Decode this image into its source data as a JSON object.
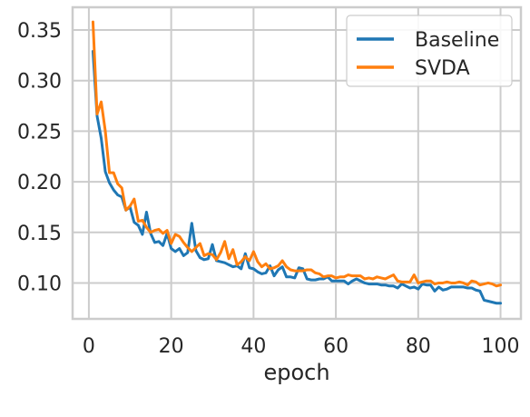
{
  "chart_data": {
    "type": "line",
    "title": "",
    "xlabel": "epoch",
    "ylabel": "",
    "xlim": [
      -3.95,
      104.95
    ],
    "ylim": [
      0.0645,
      0.3725
    ],
    "xticks": [
      0,
      20,
      40,
      60,
      80,
      100
    ],
    "yticks": [
      0.1,
      0.15,
      0.2,
      0.25,
      0.3,
      0.35
    ],
    "xtick_labels": [
      "0",
      "20",
      "40",
      "60",
      "80",
      "100"
    ],
    "ytick_labels": [
      "0.10",
      "0.15",
      "0.20",
      "0.25",
      "0.30",
      "0.35"
    ],
    "grid": true,
    "legend_position": "top-right",
    "x": [
      1,
      2,
      3,
      4,
      5,
      6,
      7,
      8,
      9,
      10,
      11,
      12,
      13,
      14,
      15,
      16,
      17,
      18,
      19,
      20,
      21,
      22,
      23,
      24,
      25,
      26,
      27,
      28,
      29,
      30,
      31,
      32,
      33,
      34,
      35,
      36,
      37,
      38,
      39,
      40,
      41,
      42,
      43,
      44,
      45,
      46,
      47,
      48,
      49,
      50,
      51,
      52,
      53,
      54,
      55,
      56,
      57,
      58,
      59,
      60,
      61,
      62,
      63,
      64,
      65,
      66,
      67,
      68,
      69,
      70,
      71,
      72,
      73,
      74,
      75,
      76,
      77,
      78,
      79,
      80,
      81,
      82,
      83,
      84,
      85,
      86,
      87,
      88,
      89,
      90,
      91,
      92,
      93,
      94,
      95,
      96,
      97,
      98,
      99,
      100
    ],
    "series": [
      {
        "name": "Baseline",
        "color": "#1f77b4",
        "values": [
          0.329,
          0.265,
          0.243,
          0.21,
          0.199,
          0.192,
          0.187,
          0.185,
          0.172,
          0.175,
          0.16,
          0.157,
          0.148,
          0.17,
          0.149,
          0.14,
          0.141,
          0.137,
          0.149,
          0.134,
          0.131,
          0.134,
          0.127,
          0.13,
          0.159,
          0.132,
          0.125,
          0.123,
          0.124,
          0.138,
          0.122,
          0.121,
          0.12,
          0.118,
          0.116,
          0.117,
          0.114,
          0.129,
          0.115,
          0.114,
          0.111,
          0.109,
          0.11,
          0.117,
          0.107,
          0.113,
          0.116,
          0.106,
          0.106,
          0.105,
          0.115,
          0.114,
          0.104,
          0.103,
          0.103,
          0.104,
          0.104,
          0.106,
          0.102,
          0.102,
          0.102,
          0.102,
          0.099,
          0.102,
          0.104,
          0.102,
          0.1,
          0.099,
          0.099,
          0.099,
          0.098,
          0.098,
          0.097,
          0.097,
          0.095,
          0.099,
          0.097,
          0.095,
          0.096,
          0.094,
          0.099,
          0.098,
          0.098,
          0.092,
          0.096,
          0.093,
          0.094,
          0.096,
          0.096,
          0.096,
          0.096,
          0.095,
          0.095,
          0.093,
          0.092,
          0.083,
          0.082,
          0.081,
          0.08,
          0.08
        ]
      },
      {
        "name": "SVDA",
        "color": "#ff7f0e",
        "values": [
          0.358,
          0.267,
          0.279,
          0.25,
          0.209,
          0.209,
          0.198,
          0.194,
          0.172,
          0.176,
          0.183,
          0.161,
          0.162,
          0.155,
          0.15,
          0.152,
          0.153,
          0.149,
          0.152,
          0.139,
          0.148,
          0.146,
          0.14,
          0.135,
          0.131,
          0.135,
          0.139,
          0.127,
          0.129,
          0.128,
          0.123,
          0.13,
          0.141,
          0.124,
          0.133,
          0.118,
          0.121,
          0.126,
          0.122,
          0.131,
          0.121,
          0.116,
          0.119,
          0.114,
          0.115,
          0.117,
          0.122,
          0.116,
          0.113,
          0.112,
          0.112,
          0.112,
          0.113,
          0.113,
          0.11,
          0.109,
          0.106,
          0.107,
          0.107,
          0.105,
          0.106,
          0.106,
          0.108,
          0.107,
          0.107,
          0.107,
          0.104,
          0.105,
          0.104,
          0.106,
          0.105,
          0.104,
          0.106,
          0.108,
          0.102,
          0.101,
          0.101,
          0.101,
          0.108,
          0.1,
          0.101,
          0.102,
          0.102,
          0.099,
          0.1,
          0.1,
          0.101,
          0.1,
          0.1,
          0.101,
          0.1,
          0.098,
          0.102,
          0.101,
          0.098,
          0.099,
          0.1,
          0.099,
          0.097,
          0.098
        ]
      }
    ]
  }
}
